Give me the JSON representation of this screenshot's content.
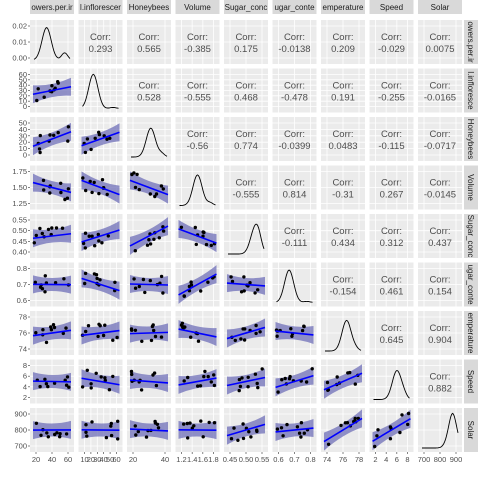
{
  "chart_data": {
    "type": "scatter-matrix",
    "variables": [
      "Flowers.per.i",
      "Inflorescences",
      "Honeybees",
      "Volume",
      "Sugar_conc",
      "Sugar_conte",
      "Temperature",
      "Speed",
      "Solar"
    ],
    "column_labels": [
      "owers.per.ir",
      "l.inflorescer",
      "Honeybees",
      "Volume",
      "Sugar_conc",
      "ugar_conte",
      "emperature",
      "Speed",
      "Solar"
    ],
    "row_labels": [
      "owers.per.ir",
      "l.infloresce",
      "Honeybees",
      "Volume",
      "Sugar_conc",
      "ugar_conte",
      "emperature",
      "Speed",
      "Solar"
    ],
    "corr_prefix": "Corr:",
    "correlations": [
      {
        "row": 0,
        "col": 1,
        "value": "0.293"
      },
      {
        "row": 0,
        "col": 2,
        "value": "0.565"
      },
      {
        "row": 0,
        "col": 3,
        "value": "-0.385"
      },
      {
        "row": 0,
        "col": 4,
        "value": "0.175"
      },
      {
        "row": 0,
        "col": 5,
        "value": "-0.0138"
      },
      {
        "row": 0,
        "col": 6,
        "value": "0.209"
      },
      {
        "row": 0,
        "col": 7,
        "value": "-0.029"
      },
      {
        "row": 0,
        "col": 8,
        "value": "0.0075"
      },
      {
        "row": 1,
        "col": 2,
        "value": "0.528"
      },
      {
        "row": 1,
        "col": 3,
        "value": "-0.555"
      },
      {
        "row": 1,
        "col": 4,
        "value": "0.468"
      },
      {
        "row": 1,
        "col": 5,
        "value": "-0.478"
      },
      {
        "row": 1,
        "col": 6,
        "value": "0.191"
      },
      {
        "row": 1,
        "col": 7,
        "value": "-0.255"
      },
      {
        "row": 1,
        "col": 8,
        "value": "-0.0165"
      },
      {
        "row": 2,
        "col": 3,
        "value": "-0.56"
      },
      {
        "row": 2,
        "col": 4,
        "value": "0.774"
      },
      {
        "row": 2,
        "col": 5,
        "value": "-0.0399"
      },
      {
        "row": 2,
        "col": 6,
        "value": "0.0483"
      },
      {
        "row": 2,
        "col": 7,
        "value": "-0.115"
      },
      {
        "row": 2,
        "col": 8,
        "value": "-0.0717"
      },
      {
        "row": 3,
        "col": 4,
        "value": "-0.555"
      },
      {
        "row": 3,
        "col": 5,
        "value": "0.814"
      },
      {
        "row": 3,
        "col": 6,
        "value": "-0.31"
      },
      {
        "row": 3,
        "col": 7,
        "value": "0.267"
      },
      {
        "row": 3,
        "col": 8,
        "value": "-0.0145"
      },
      {
        "row": 4,
        "col": 5,
        "value": "-0.111"
      },
      {
        "row": 4,
        "col": 6,
        "value": "0.434"
      },
      {
        "row": 4,
        "col": 7,
        "value": "0.312"
      },
      {
        "row": 4,
        "col": 8,
        "value": "0.437"
      },
      {
        "row": 5,
        "col": 6,
        "value": "-0.154"
      },
      {
        "row": 5,
        "col": 7,
        "value": "0.461"
      },
      {
        "row": 5,
        "col": 8,
        "value": "0.154"
      },
      {
        "row": 6,
        "col": 7,
        "value": "0.645"
      },
      {
        "row": 6,
        "col": 8,
        "value": "0.904"
      },
      {
        "row": 7,
        "col": 8,
        "value": "0.882"
      }
    ],
    "x_ticks": [
      [
        "20",
        "40",
        "60"
      ],
      [
        "10",
        "20",
        "30",
        "40",
        "50",
        "60"
      ],
      [
        "20",
        "40"
      ],
      [
        "1.2",
        "1.4",
        "1.6",
        "1.8"
      ],
      [
        "0.45",
        "0.50",
        "0.55"
      ],
      [
        "0.6",
        "0.7",
        "0.8"
      ],
      [
        "74",
        "76",
        "78"
      ],
      [
        "2",
        "4",
        "6",
        "8"
      ],
      [
        "700",
        "800",
        "900"
      ]
    ],
    "y_ticks": [
      [
        "0.00",
        "0.01",
        "0.02"
      ],
      [
        "0",
        "10",
        "20",
        "30",
        "40",
        "50",
        "60"
      ],
      [
        "0",
        "10",
        "20",
        "30",
        "40",
        "50"
      ],
      [
        "1.25",
        "1.50",
        "1.75"
      ],
      [
        "0.40",
        "0.45",
        "0.50",
        "0.55"
      ],
      [
        "0.6",
        "0.7",
        "0.8"
      ],
      [
        "74",
        "76",
        "78"
      ],
      [
        "2",
        "4",
        "6",
        "8"
      ],
      [
        "700",
        "800",
        "900"
      ]
    ],
    "colors": {
      "fit": "#0000ff",
      "band": "#6f6fb8",
      "panel": "#ebebeb",
      "strip": "#d9d9d9",
      "points": "#000000"
    }
  }
}
